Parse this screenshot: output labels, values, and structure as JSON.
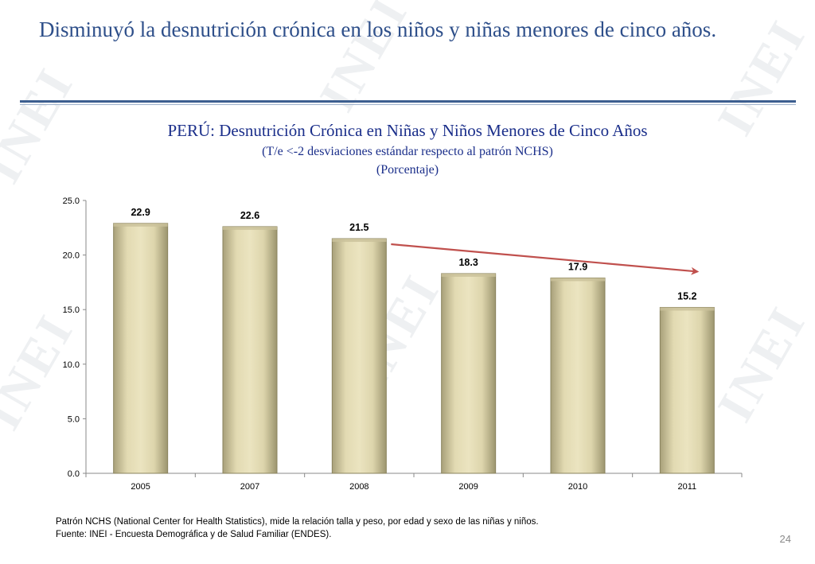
{
  "slide": {
    "title": "Disminuyó la desnutrición crónica en los niños y niñas menores de cinco años.",
    "page_number": "24",
    "watermark": "INEI"
  },
  "chart_data": {
    "type": "bar",
    "title": "PERÚ: Desnutrición Crónica en Niñas y Niños Menores de Cinco Años",
    "subtitle": "(T/e <-2 desviaciones estándar respecto al patrón NCHS)",
    "subtitle2": "(Porcentaje)",
    "categories": [
      "2005",
      "2007",
      "2008",
      "2009",
      "2010",
      "2011"
    ],
    "values": [
      22.9,
      22.6,
      21.5,
      18.3,
      17.9,
      15.2
    ],
    "data_labels": [
      "22.9",
      "22.6",
      "21.5",
      "18.3",
      "17.9",
      "15.2"
    ],
    "yticks": [
      "0.0",
      "5.0",
      "10.0",
      "15.0",
      "20.0",
      "25.0"
    ],
    "ylim": [
      0,
      25
    ],
    "xlabel": "",
    "ylabel": "",
    "grid": false,
    "legend": "none",
    "bar_color": "#d8d0a4",
    "bar_edge_color": "#8a835e",
    "trend_arrow_color": "#c0504d",
    "trend_arrow": {
      "from_index": 2,
      "to_index": 5,
      "direction": "decreasing"
    }
  },
  "footnotes": {
    "line1": "Patrón NCHS (National Center for Health Statistics), mide la relación talla y peso, por edad y sexo de las niñas y niños.",
    "line2": "Fuente: INEI - Encuesta Demográfica y de Salud Familiar (ENDES)."
  }
}
